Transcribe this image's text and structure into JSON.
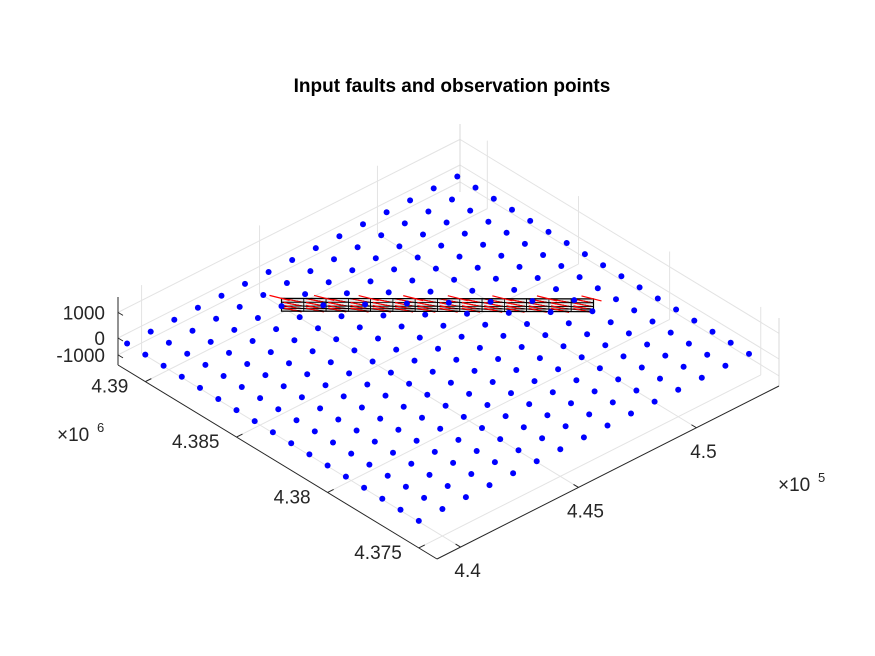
{
  "chart_data": {
    "type": "scatter3d",
    "title": "Input faults and observation points",
    "x_axis": {
      "ticks": [
        440000,
        445000,
        450000
      ],
      "tick_labels": [
        "4.4",
        "4.45",
        "4.5"
      ],
      "exponent_base": "×10",
      "exponent_power": "5",
      "range": [
        439000,
        453500
      ]
    },
    "y_axis": {
      "ticks": [
        4375000,
        4380000,
        4385000,
        4390000
      ],
      "tick_labels": [
        "4.375",
        "4.38",
        "4.385",
        "4.39"
      ],
      "exponent_base": "×10",
      "exponent_power": "6",
      "range": [
        4374000,
        4391500
      ]
    },
    "z_axis": {
      "ticks": [
        -1000,
        0,
        1000
      ],
      "tick_labels": [
        "-1000",
        "0",
        "1000"
      ],
      "range": [
        -1600,
        1600
      ]
    },
    "grid": true,
    "observation_points": {
      "color": "#0000ff",
      "x_start": 439000,
      "x_step": 1000,
      "x_count": 15,
      "y_start": 4375000,
      "y_step": 1000,
      "y_count": 17,
      "z": 0
    },
    "fault": {
      "fill_color": "#e6e6e6",
      "edge_color": "#000000",
      "vector_color": "#ff0000",
      "corners": [
        [
          444000,
          4389000,
          300
        ],
        [
          451200,
          4381200,
          300
        ],
        [
          451200,
          4381200,
          -300
        ],
        [
          444000,
          4389000,
          -300
        ]
      ],
      "strike_divisions": 14,
      "dip_divisions": 4
    }
  }
}
